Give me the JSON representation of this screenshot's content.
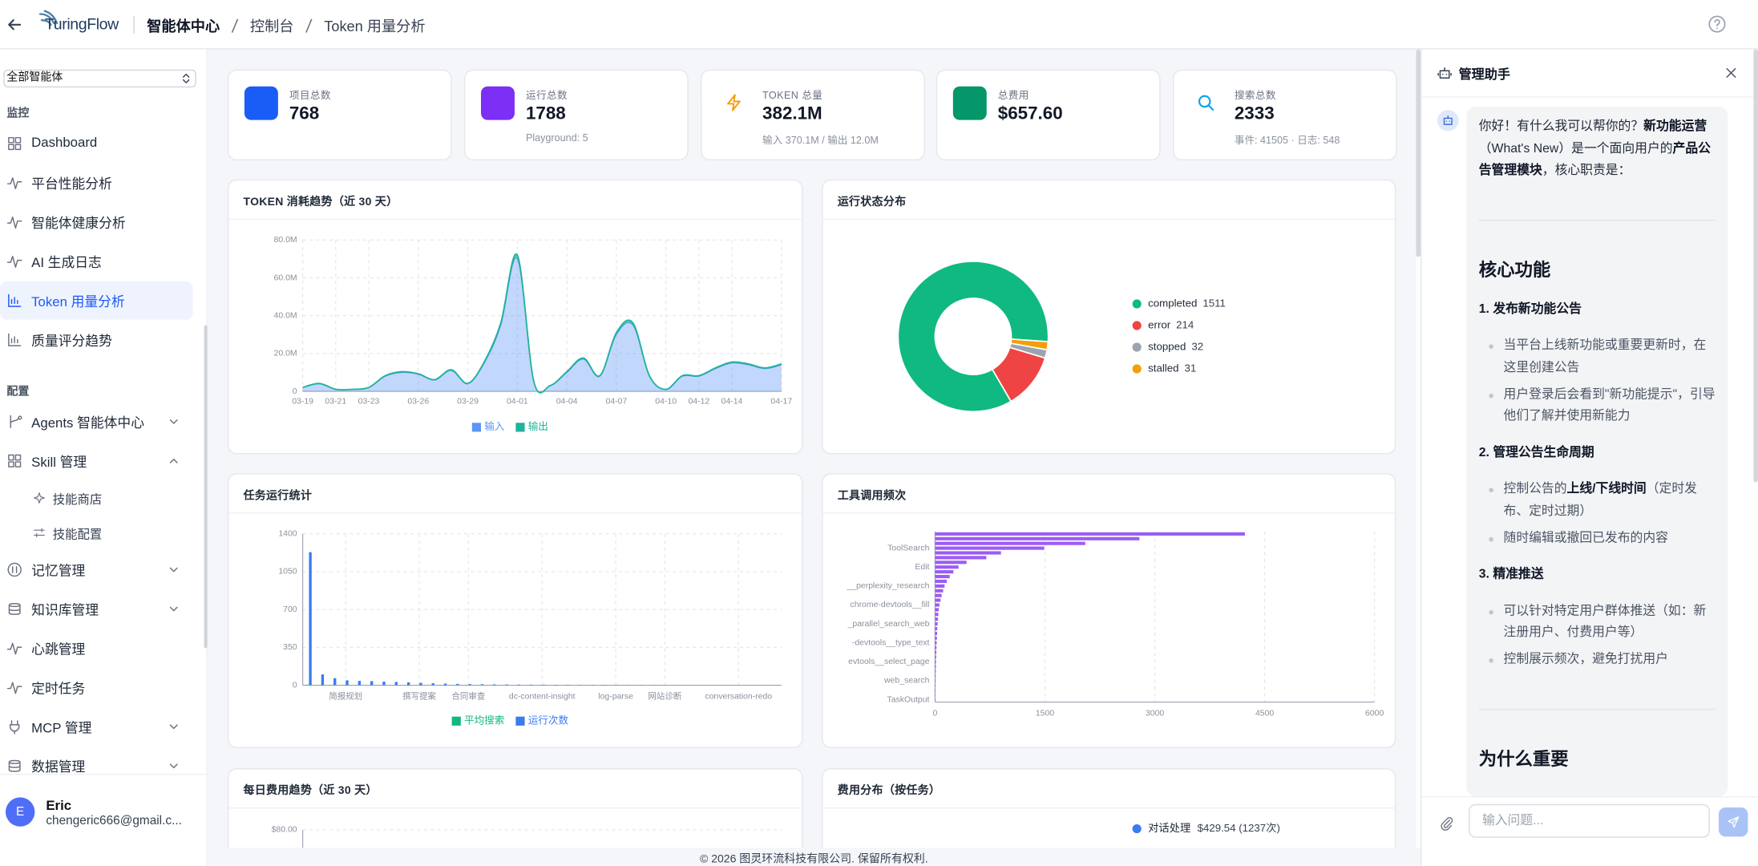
{
  "header": {
    "logo": "TuringFlow",
    "breadcrumb": [
      "智能体中心",
      "控制台",
      "Token 用量分析"
    ]
  },
  "sidebar": {
    "agent_select": "全部智能体",
    "sections": [
      {
        "title": "监控",
        "items": [
          {
            "label": "Dashboard",
            "icon": "grid"
          },
          {
            "label": "平台性能分析",
            "icon": "pulse"
          },
          {
            "label": "智能体健康分析",
            "icon": "pulse"
          },
          {
            "label": "AI 生成日志",
            "icon": "pulse"
          },
          {
            "label": "Token 用量分析",
            "icon": "bars",
            "active": true
          },
          {
            "label": "质量评分趋势",
            "icon": "bars"
          }
        ]
      },
      {
        "title": "配置",
        "items": [
          {
            "label": "Agents 智能体中心",
            "icon": "branch",
            "chevron": "down"
          },
          {
            "label": "Skill 管理",
            "icon": "grid",
            "chevron": "up",
            "children": [
              "技能商店",
              "技能配置"
            ]
          },
          {
            "label": "记忆管理",
            "icon": "circle",
            "chevron": "down"
          },
          {
            "label": "知识库管理",
            "icon": "db",
            "chevron": "down"
          },
          {
            "label": "心跳管理",
            "icon": "pulse"
          },
          {
            "label": "定时任务",
            "icon": "pulse"
          },
          {
            "label": "MCP 管理",
            "icon": "plug",
            "chevron": "down"
          },
          {
            "label": "数据管理",
            "icon": "db",
            "chevron": "down"
          }
        ]
      }
    ],
    "user": {
      "avatar": "E",
      "name": "Eric",
      "email": "chengeric666@gmail.c..."
    }
  },
  "stats": [
    {
      "label": "项目总数",
      "value": 768,
      "icon": "square",
      "color": "#1a5cf6"
    },
    {
      "label": "运行总数",
      "value": 1788,
      "sub": "Playground: 5",
      "icon": "square",
      "color": "#7c2ff5"
    },
    {
      "label": "TOKEN 总量",
      "value": "382.1M",
      "sub": "输入 370.1M / 输出 12.0M",
      "icon": "bolt",
      "color": "#f59e0b"
    },
    {
      "label": "总费用",
      "value": "$657.60",
      "icon": "square",
      "color": "#059669"
    },
    {
      "label": "搜索总数",
      "value": 2333,
      "sub": "事件: 41505 · 日志: 548",
      "icon": "search",
      "color": "#0ea5e9"
    }
  ],
  "token_chart": {
    "type": "area",
    "title": "TOKEN 消耗趋势（近 30 天）",
    "stacked": true,
    "grid": true,
    "categories": [
      "03-19",
      null,
      "03-21",
      null,
      "03-23",
      null,
      null,
      "03-26",
      null,
      null,
      "03-29",
      null,
      null,
      "04-01",
      null,
      null,
      "04-04",
      null,
      null,
      "04-07",
      null,
      null,
      "04-10",
      null,
      "04-12",
      null,
      "04-14",
      null,
      null,
      "04-17"
    ],
    "series": [
      {
        "name": "输入",
        "color": "#5b95f5",
        "values": [
          2,
          4,
          1,
          1,
          2,
          8,
          10,
          9,
          6,
          11,
          4,
          15,
          35,
          70,
          5,
          3,
          10,
          17,
          8,
          30,
          35,
          8,
          1,
          8,
          8,
          12,
          15,
          14,
          12,
          14
        ]
      },
      {
        "name": "输出",
        "color": "#1fb39a",
        "values": [
          0.1,
          0.2,
          0.1,
          0.1,
          0.1,
          0.3,
          0.4,
          0.3,
          0.2,
          0.4,
          0.2,
          0.6,
          1.2,
          2.0,
          0.2,
          0.1,
          0.4,
          0.6,
          0.3,
          1.0,
          1.2,
          0.3,
          0.1,
          0.3,
          0.3,
          0.4,
          0.5,
          0.5,
          0.4,
          0.5
        ]
      }
    ],
    "ylim": [
      0,
      80
    ],
    "yticks": [
      0,
      {
        "value": 20,
        "label": "20.0M"
      },
      {
        "value": 40,
        "label": "40.0M"
      },
      {
        "value": 60,
        "label": "60.0M"
      },
      {
        "value": 80,
        "label": "80.0M"
      }
    ]
  },
  "status_chart": {
    "type": "donut",
    "title": "运行状态分布",
    "categories": [
      "completed",
      "error",
      "stopped",
      "stalled"
    ],
    "values": [
      1511,
      214,
      32,
      31
    ],
    "colors": [
      "#10b981",
      "#ef4444",
      "#9ca3af",
      "#f59e0b"
    ]
  },
  "task_chart": {
    "type": "bar",
    "title": "任务运行统计",
    "grid": true,
    "categories": [
      null,
      null,
      null,
      "简报规划",
      null,
      null,
      null,
      null,
      null,
      "撰写提案",
      null,
      null,
      null,
      "合同审查",
      null,
      null,
      null,
      null,
      null,
      "dc-content-insight",
      null,
      null,
      null,
      null,
      null,
      "log-parse",
      null,
      null,
      null,
      "网站诊断",
      null,
      null,
      null,
      null,
      null,
      "conversation-redo",
      null,
      null,
      null
    ],
    "series": [
      {
        "name": "平均搜索",
        "color": "#10b981",
        "values": [
          5,
          3,
          2,
          2,
          1,
          1,
          1,
          1,
          1,
          1,
          1,
          1,
          1,
          1,
          1,
          1,
          1,
          1,
          1,
          1,
          1,
          1,
          1,
          1,
          1,
          1,
          1,
          1,
          1,
          1,
          1,
          1,
          1,
          1,
          1,
          1,
          1,
          1,
          1
        ]
      },
      {
        "name": "运行次数",
        "color": "#3b7bf0",
        "values": [
          1230,
          100,
          65,
          45,
          40,
          38,
          33,
          30,
          27,
          22,
          18,
          15,
          12,
          10,
          9,
          8,
          7,
          6,
          5,
          5,
          4,
          4,
          3,
          3,
          3,
          2,
          2,
          2,
          2,
          1,
          1,
          1,
          1,
          1,
          1,
          1,
          1,
          1,
          1
        ]
      }
    ],
    "ylim": [
      0,
      1400
    ],
    "yticks": [
      0,
      350,
      700,
      1050,
      1400
    ]
  },
  "tool_chart": {
    "type": "hbar",
    "title": "工具调用频次",
    "grid": true,
    "color": "#9b5cf6",
    "categories": [
      null,
      null,
      null,
      "ToolSearch",
      null,
      null,
      null,
      "Edit",
      null,
      null,
      null,
      "__perplexity_research",
      null,
      null,
      null,
      "chrome-devtools__fill",
      null,
      null,
      null,
      "_parallel_search_web",
      null,
      null,
      null,
      "-devtools__type_text",
      null,
      null,
      null,
      "evtools__select_page",
      null,
      null,
      null,
      "web_search",
      null,
      null,
      null,
      "TaskOutput"
    ],
    "values": [
      4230,
      2790,
      2050,
      1490,
      900,
      700,
      430,
      320,
      250,
      200,
      160,
      130,
      110,
      90,
      75,
      60,
      50,
      45,
      40,
      35,
      30,
      28,
      25,
      22,
      20,
      18,
      15,
      13,
      12,
      10,
      9,
      8,
      7,
      6,
      5,
      4
    ],
    "xlim": [
      0,
      6000
    ],
    "xticks": [
      0,
      1500,
      3000,
      4500,
      6000
    ]
  },
  "cost_chart": {
    "type": "line",
    "title": "每日费用趋势（近 30 天）",
    "grid": true,
    "ylim": [
      0,
      80
    ],
    "yticks": [
      {
        "value": 80,
        "label": "$80.00"
      }
    ]
  },
  "cost_dist": {
    "type": "pie",
    "title": "费用分布（按任务）",
    "legend": [
      {
        "name": "对话处理",
        "label": "$429.54 (1237次)",
        "color": "#3b7bf0"
      }
    ]
  },
  "chat": {
    "title": "管理助手",
    "intro": [
      {
        "text": "你好！有什么我可以帮你的？"
      },
      {
        "text": "新功能运营",
        "bold": true
      },
      {
        "text": "（What's New）是一个面向用户的"
      },
      {
        "text": "产品公告管理模块",
        "bold": true
      },
      {
        "text": "，核心职责是："
      }
    ],
    "blocks": [
      {
        "heading": "核心功能",
        "items": [
          {
            "title": "1. 发布新功能公告",
            "bullets": [
              [
                {
                  "text": "当平台上线新功能或重要更新时，在这里创建公告"
                }
              ],
              [
                {
                  "text": "用户登录后会看到\"新功能提示\"，引导他们了解并使用新能力"
                }
              ]
            ]
          },
          {
            "title": "2. 管理公告生命周期",
            "bullets": [
              [
                {
                  "text": "控制公告的"
                },
                {
                  "text": "上线/下线时间",
                  "bold": true
                },
                {
                  "text": "（定时发布、定时过期）"
                }
              ],
              [
                {
                  "text": "随时编辑或撤回已发布的内容"
                }
              ]
            ]
          },
          {
            "title": "3. 精准推送",
            "bullets": [
              [
                {
                  "text": "可以针对特定用户群体推送（如：新注册用户、付费用户等）"
                }
              ],
              [
                {
                  "text": "控制展示频次，避免打扰用户"
                }
              ]
            ]
          }
        ]
      },
      {
        "heading": "为什么重要"
      }
    ],
    "placeholder": "输入问题..."
  },
  "footer": "© 2026 图灵环流科技有限公司. 保留所有权利."
}
